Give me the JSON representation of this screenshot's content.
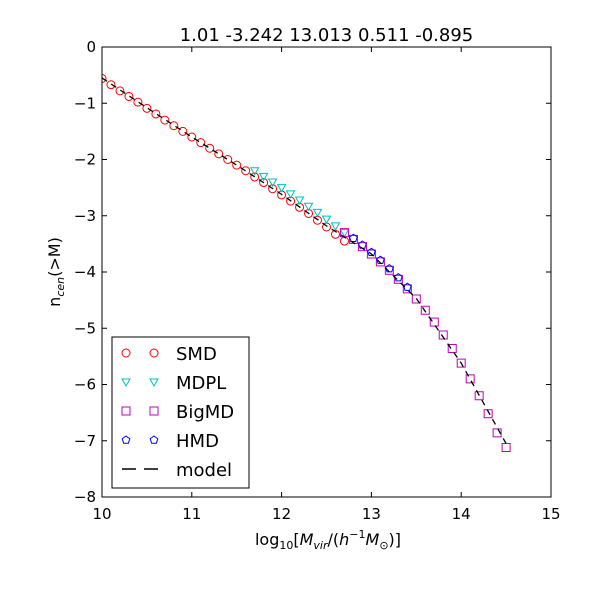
{
  "chart_data": {
    "type": "scatter",
    "title": "1.01 -3.242 13.013 0.511 -0.895",
    "xlabel": "log₁₀[M_vir/(h⁻¹M_☉)]",
    "ylabel": "n_cen(>M)",
    "xlim": [
      10,
      15
    ],
    "ylim": [
      -8,
      0
    ],
    "xticks": [
      "10",
      "11",
      "12",
      "13",
      "14",
      "15"
    ],
    "yticks": [
      "0",
      "−1",
      "−2",
      "−3",
      "−4",
      "−5",
      "−6",
      "−7",
      "−8"
    ],
    "legend_position": "lower-left",
    "series": [
      {
        "name": "SMD",
        "marker": "circle",
        "color": "#ff0000",
        "x": [
          10.0,
          10.1,
          10.2,
          10.3,
          10.4,
          10.5,
          10.6,
          10.7,
          10.8,
          10.9,
          11.0,
          11.1,
          11.2,
          11.3,
          11.4,
          11.5,
          11.6,
          11.7,
          11.8,
          11.9,
          12.0,
          12.1,
          12.2,
          12.3,
          12.4,
          12.5,
          12.6,
          12.7
        ],
        "y": [
          -0.56,
          -0.67,
          -0.78,
          -0.88,
          -0.98,
          -1.09,
          -1.19,
          -1.3,
          -1.4,
          -1.5,
          -1.6,
          -1.7,
          -1.8,
          -1.9,
          -2.0,
          -2.1,
          -2.2,
          -2.31,
          -2.41,
          -2.52,
          -2.63,
          -2.74,
          -2.85,
          -2.96,
          -3.08,
          -3.2,
          -3.33,
          -3.45
        ]
      },
      {
        "name": "MDPL",
        "marker": "triangle-down",
        "color": "#00bfbf",
        "x": [
          11.7,
          11.8,
          11.9,
          12.0,
          12.1,
          12.2,
          12.3,
          12.4,
          12.5,
          12.6,
          12.7
        ],
        "y": [
          -2.2,
          -2.3,
          -2.4,
          -2.5,
          -2.61,
          -2.72,
          -2.83,
          -2.94,
          -3.06,
          -3.18,
          -3.3
        ]
      },
      {
        "name": "BigMD",
        "marker": "square",
        "color": "#bf00bf",
        "x": [
          12.7,
          12.8,
          12.9,
          13.0,
          13.1,
          13.2,
          13.3,
          13.4,
          13.5,
          13.6,
          13.7,
          13.8,
          13.9,
          14.0,
          14.1,
          14.2,
          14.3,
          14.4,
          14.5
        ],
        "y": [
          -3.3,
          -3.42,
          -3.55,
          -3.68,
          -3.82,
          -3.97,
          -4.13,
          -4.3,
          -4.48,
          -4.68,
          -4.89,
          -5.12,
          -5.36,
          -5.62,
          -5.9,
          -6.2,
          -6.52,
          -6.86,
          -7.12
        ]
      },
      {
        "name": "HMD",
        "marker": "pentagon",
        "color": "#0000ff",
        "x": [
          12.8,
          12.9,
          13.0,
          13.1,
          13.2,
          13.3,
          13.4
        ],
        "y": [
          -3.4,
          -3.52,
          -3.65,
          -3.79,
          -3.94,
          -4.1,
          -4.27
        ]
      },
      {
        "name": "model",
        "marker": "dashed-line",
        "color": "#000000",
        "x": [
          10.0,
          10.5,
          11.0,
          11.5,
          12.0,
          12.5,
          13.0,
          13.5,
          14.0,
          14.5
        ],
        "y": [
          -0.55,
          -1.08,
          -1.6,
          -2.1,
          -2.62,
          -3.18,
          -3.68,
          -4.47,
          -5.62,
          -7.05
        ]
      }
    ]
  }
}
